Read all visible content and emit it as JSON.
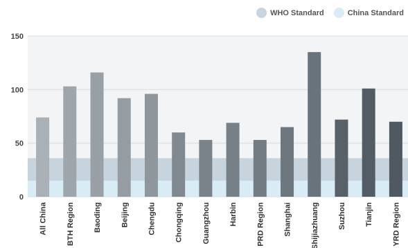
{
  "legend": {
    "who_label": "WHO Standard",
    "china_label": "China Standard",
    "who_color": "#c7d4dd",
    "china_color": "#d8ecf6"
  },
  "chart_data": {
    "type": "bar",
    "categories": [
      "All China",
      "BTH Region",
      "Baoding",
      "Beijing",
      "Chengdu",
      "Chongqing",
      "Guangzhou",
      "Harbin",
      "PRD Region",
      "Shanghai",
      "Shijiazhuang",
      "Suzhou",
      "Tianjin",
      "YRD Region"
    ],
    "values": [
      74,
      103,
      116,
      92,
      96,
      60,
      53,
      69,
      53,
      65,
      135,
      72,
      101,
      70
    ],
    "bar_colors": [
      "#a9b0b6",
      "#9ea5ab",
      "#989fa5",
      "#959ca2",
      "#8f969c",
      "#818990",
      "#7b838a",
      "#778087",
      "#747c83",
      "#6e767e",
      "#69737b",
      "#586068",
      "#535b64",
      "#505862"
    ],
    "yticks": [
      0,
      50,
      100,
      150
    ],
    "ylim": [
      0,
      150
    ],
    "grid": true,
    "bands": [
      {
        "from": 0,
        "to": 15,
        "color": "#d8ecf6",
        "label": "China Standard"
      },
      {
        "from": 15,
        "to": 36,
        "color": "#c7d4dd",
        "label": "WHO Standard"
      }
    ],
    "plot_background": "#f2f4f6",
    "legend_position": "top-right"
  }
}
